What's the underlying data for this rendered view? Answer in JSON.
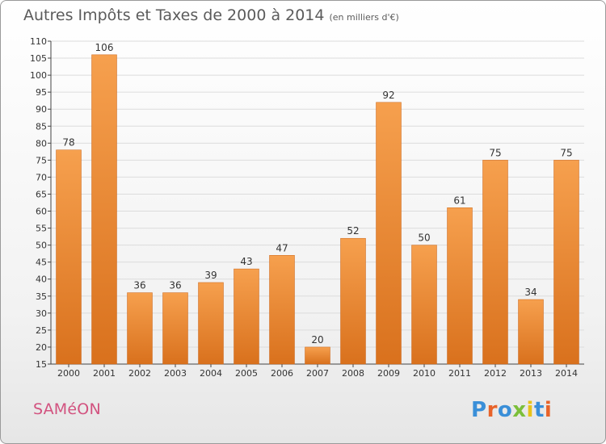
{
  "title": "Autres Impôts et Taxes de 2000 à 2014",
  "subtitle": "(en milliers d'€)",
  "commune": "SAMéON",
  "brand": {
    "text": "Proxiti",
    "letter_colors": [
      "#3a8fd8",
      "#e8632a",
      "#3a8fd8",
      "#7cbf3a",
      "#e8c21a",
      "#3a8fd8",
      "#e8632a"
    ]
  },
  "colors": {
    "bar_top": "#f6a04e",
    "bar_bottom": "#d9711d",
    "grid": "#dcdcdc",
    "axis": "#444444",
    "label": "#333333"
  },
  "chart_data": {
    "type": "bar",
    "categories": [
      "2000",
      "2001",
      "2002",
      "2003",
      "2004",
      "2005",
      "2006",
      "2007",
      "2008",
      "2009",
      "2010",
      "2011",
      "2012",
      "2013",
      "2014"
    ],
    "values": [
      78,
      106,
      36,
      36,
      39,
      43,
      47,
      20,
      52,
      92,
      50,
      61,
      75,
      34,
      75
    ],
    "ylim": [
      15,
      110
    ],
    "yticks": [
      15,
      20,
      25,
      30,
      35,
      40,
      45,
      50,
      55,
      60,
      65,
      70,
      75,
      80,
      85,
      90,
      95,
      100,
      105,
      110
    ],
    "grid": true,
    "data_labels": true
  }
}
